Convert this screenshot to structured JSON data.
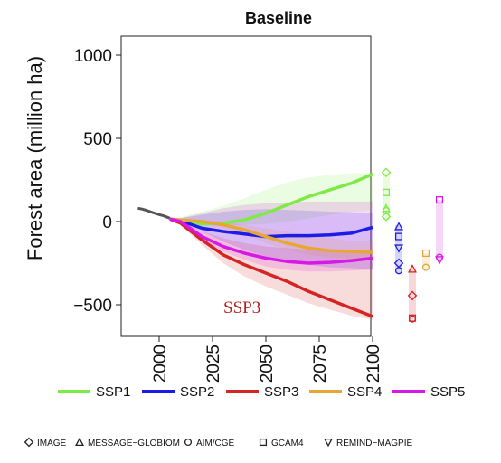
{
  "chart_data": {
    "type": "line",
    "title": "Baseline",
    "ylabel": "Forest area (million ha)",
    "xlabel": "",
    "xlim": [
      1985,
      2100
    ],
    "ylim": [
      -620,
      1130
    ],
    "yticks": [
      1000,
      500,
      0,
      -500
    ],
    "xticks": [
      2000,
      2025,
      2050,
      2075,
      2100
    ],
    "annotation": "SSP3",
    "history": {
      "color": "#555555",
      "x": [
        1990,
        1992,
        1994,
        1996,
        1998,
        2000,
        2002,
        2005
      ],
      "y": [
        80,
        75,
        68,
        58,
        50,
        42,
        35,
        20
      ]
    },
    "series": [
      {
        "name": "SSP1",
        "color": "#7dea45",
        "x": [
          2005,
          2010,
          2020,
          2030,
          2040,
          2050,
          2060,
          2070,
          2080,
          2090,
          2100
        ],
        "y": [
          15,
          10,
          -15,
          -10,
          10,
          50,
          100,
          150,
          190,
          230,
          285
        ],
        "band_upper": [
          15,
          25,
          60,
          95,
          140,
          190,
          235,
          265,
          280,
          290,
          295
        ],
        "band_lower": [
          15,
          0,
          -20,
          -25,
          -20,
          -15,
          0,
          20,
          40,
          55,
          70
        ]
      },
      {
        "name": "SSP2",
        "color": "#1c1ce6",
        "x": [
          2005,
          2010,
          2020,
          2030,
          2040,
          2050,
          2060,
          2070,
          2080,
          2090,
          2100
        ],
        "y": [
          15,
          5,
          -40,
          -60,
          -75,
          -90,
          -85,
          -85,
          -80,
          -70,
          -35
        ],
        "band_upper": [
          15,
          20,
          40,
          60,
          70,
          75,
          70,
          65,
          60,
          55,
          50
        ],
        "band_lower": [
          15,
          -10,
          -60,
          -120,
          -170,
          -210,
          -240,
          -260,
          -275,
          -280,
          -290
        ]
      },
      {
        "name": "SSP3",
        "color": "#d42424",
        "x": [
          2005,
          2010,
          2020,
          2030,
          2040,
          2050,
          2060,
          2070,
          2080,
          2090,
          2100
        ],
        "y": [
          15,
          -10,
          -110,
          -200,
          -260,
          -310,
          -360,
          -420,
          -470,
          -520,
          -570
        ],
        "band_upper": [
          15,
          0,
          -60,
          -100,
          -130,
          -150,
          -160,
          -170,
          -175,
          -180,
          -180
        ],
        "band_lower": [
          15,
          -20,
          -140,
          -250,
          -330,
          -390,
          -440,
          -490,
          -530,
          -565,
          -590
        ]
      },
      {
        "name": "SSP4",
        "color": "#e6a833",
        "x": [
          2005,
          2010,
          2020,
          2030,
          2040,
          2050,
          2060,
          2070,
          2080,
          2090,
          2100
        ],
        "y": [
          15,
          10,
          0,
          -20,
          -50,
          -90,
          -130,
          -160,
          -175,
          -180,
          -185
        ],
        "band_upper": [
          15,
          15,
          10,
          0,
          -20,
          -40,
          -60,
          -80,
          -100,
          -115,
          -120
        ],
        "band_lower": [
          15,
          0,
          -15,
          -40,
          -80,
          -130,
          -170,
          -200,
          -215,
          -225,
          -230
        ]
      },
      {
        "name": "SSP5",
        "color": "#d619e6",
        "x": [
          2005,
          2010,
          2020,
          2030,
          2040,
          2050,
          2060,
          2070,
          2080,
          2090,
          2100
        ],
        "y": [
          15,
          0,
          -90,
          -150,
          -190,
          -220,
          -240,
          -250,
          -245,
          -235,
          -220
        ],
        "band_upper": [
          15,
          20,
          50,
          80,
          100,
          110,
          115,
          120,
          120,
          120,
          120
        ],
        "band_lower": [
          15,
          -10,
          -110,
          -180,
          -230,
          -270,
          -290,
          -300,
          -300,
          -295,
          -290
        ]
      }
    ],
    "model_markers": [
      {
        "series": "SSP1",
        "range": [
          10,
          295
        ],
        "points": [
          {
            "shape": "diamond",
            "y": 295
          },
          {
            "shape": "square",
            "y": 175
          },
          {
            "shape": "circle",
            "y": 65
          },
          {
            "shape": "diamond",
            "y": 30
          },
          {
            "shape": "triangle",
            "y": 80
          }
        ]
      },
      {
        "series": "SSP2",
        "range": [
          -310,
          -20
        ],
        "points": [
          {
            "shape": "triangle",
            "y": -30
          },
          {
            "shape": "square",
            "y": -90
          },
          {
            "shape": "triangle-down",
            "y": -160
          },
          {
            "shape": "diamond",
            "y": -250
          },
          {
            "shape": "circle",
            "y": -295
          }
        ]
      },
      {
        "series": "SSP3",
        "range": [
          -590,
          -280
        ],
        "points": [
          {
            "shape": "triangle",
            "y": -285
          },
          {
            "shape": "diamond",
            "y": -445
          },
          {
            "shape": "square",
            "y": -580
          },
          {
            "shape": "circle",
            "y": -585
          }
        ]
      },
      {
        "series": "SSP4",
        "range": [
          -280,
          -190
        ],
        "points": [
          {
            "shape": "square",
            "y": -190
          },
          {
            "shape": "circle",
            "y": -275
          }
        ]
      },
      {
        "series": "SSP5",
        "range": [
          -235,
          130
        ],
        "points": [
          {
            "shape": "square",
            "y": 130
          },
          {
            "shape": "circle",
            "y": -215
          },
          {
            "shape": "triangle-down",
            "y": -230
          }
        ]
      }
    ],
    "model_legend": [
      {
        "shape": "diamond",
        "label": "IMAGE"
      },
      {
        "shape": "triangle",
        "label": "MESSAGE−GLOBIOM"
      },
      {
        "shape": "circle",
        "label": "AIM/CGE"
      },
      {
        "shape": "square",
        "label": "GCAM4"
      },
      {
        "shape": "triangle-down",
        "label": "REMIND−MAGPIE"
      }
    ],
    "grid": false,
    "legend_position": "bottom"
  },
  "tick_labels": {
    "y": [
      "1000",
      "500",
      "0",
      "−500"
    ],
    "x": [
      "2000",
      "2025",
      "2050",
      "2075",
      "2100"
    ]
  }
}
